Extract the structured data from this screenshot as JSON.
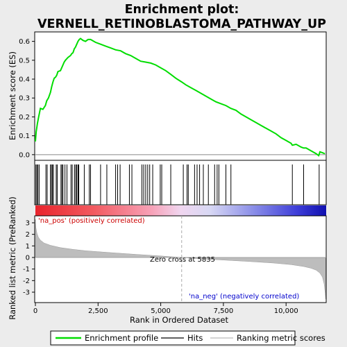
{
  "chart_data": {
    "type": "line",
    "title_line1": "Enrichment plot:",
    "title_line2": "VERNELL_RETINOBLASTOMA_PATHWAY_UP",
    "top_panel": {
      "ylabel": "Enrichment score (ES)",
      "ylim": [
        -0.03,
        0.65
      ],
      "yticks": [
        "0.0",
        "0.1",
        "0.2",
        "0.3",
        "0.4",
        "0.5",
        "0.6"
      ],
      "xlim": [
        0,
        11600
      ],
      "series_name": "Enrichment profile",
      "color": "#00dd00",
      "x": [
        0,
        30,
        80,
        130,
        200,
        300,
        400,
        450,
        520,
        600,
        650,
        700,
        750,
        800,
        850,
        900,
        1000,
        1100,
        1150,
        1200,
        1300,
        1400,
        1450,
        1500,
        1550,
        1600,
        1650,
        1700,
        1750,
        1800,
        1900,
        2000,
        2100,
        2200,
        2400,
        2600,
        2800,
        3000,
        3200,
        3400,
        3600,
        3800,
        4000,
        4200,
        4400,
        4600,
        4800,
        5000,
        5200,
        5400,
        5600,
        5835,
        6000,
        6200,
        6400,
        6600,
        6800,
        7000,
        7200,
        7400,
        7600,
        7800,
        8000,
        8200,
        8400,
        8600,
        8800,
        9000,
        9200,
        9400,
        9600,
        9800,
        10000,
        10200,
        10250,
        10400,
        10600,
        10700,
        10800,
        11000,
        11200,
        11300,
        11350,
        11450,
        11550
      ],
      "y": [
        0.07,
        0.12,
        0.165,
        0.2,
        0.245,
        0.24,
        0.26,
        0.285,
        0.3,
        0.33,
        0.36,
        0.385,
        0.405,
        0.41,
        0.42,
        0.44,
        0.445,
        0.475,
        0.49,
        0.5,
        0.515,
        0.525,
        0.535,
        0.54,
        0.56,
        0.57,
        0.585,
        0.6,
        0.61,
        0.615,
        0.605,
        0.6,
        0.61,
        0.61,
        0.595,
        0.585,
        0.575,
        0.565,
        0.555,
        0.55,
        0.535,
        0.525,
        0.51,
        0.495,
        0.49,
        0.485,
        0.475,
        0.46,
        0.445,
        0.425,
        0.405,
        0.385,
        0.37,
        0.355,
        0.34,
        0.325,
        0.31,
        0.295,
        0.28,
        0.27,
        0.26,
        0.245,
        0.235,
        0.215,
        0.2,
        0.185,
        0.17,
        0.155,
        0.14,
        0.125,
        0.11,
        0.09,
        0.075,
        0.06,
        0.05,
        0.055,
        0.04,
        0.035,
        0.035,
        0.02,
        0.005,
        -0.005,
        0.015,
        0.01,
        0.005
      ]
    },
    "hits": [
      20,
      60,
      100,
      150,
      420,
      470,
      600,
      640,
      680,
      720,
      830,
      870,
      1020,
      1060,
      1100,
      1180,
      1260,
      1420,
      1470,
      1560,
      1610,
      1650,
      1700,
      1730,
      1950,
      2150,
      2200,
      2600,
      2850,
      3200,
      3280,
      3380,
      3750,
      3850,
      4250,
      4320,
      4400,
      4480,
      4560,
      4680,
      4980,
      5040,
      5400,
      5900,
      6050,
      6100,
      6350,
      6450,
      6550,
      6700,
      6900,
      7150,
      7250,
      7320,
      7600,
      7800,
      10250,
      10700,
      11320
    ],
    "bottom_panel": {
      "ylabel": "Ranked list metric (PreRanked)",
      "xlabel": "Rank in Ordered Dataset",
      "ylim": [
        -3.9,
        3.6
      ],
      "yticks": [
        "-3",
        "-2",
        "-1",
        "0",
        "1",
        "2",
        "3"
      ],
      "xticks": [
        0,
        2500,
        5000,
        7500,
        10000
      ],
      "xtick_labels": [
        "0",
        "2,500",
        "5,000",
        "7,500",
        "10,000"
      ],
      "curve_x": [
        0,
        20,
        60,
        120,
        200,
        350,
        600,
        1000,
        1500,
        2000,
        3000,
        4000,
        5000,
        5835,
        6500,
        7500,
        8500,
        9500,
        10200,
        10700,
        11000,
        11200,
        11350,
        11450,
        11520,
        11560,
        11580
      ],
      "curve_y": [
        3.3,
        2.6,
        2.1,
        1.75,
        1.5,
        1.25,
        1.05,
        0.85,
        0.7,
        0.58,
        0.42,
        0.27,
        0.13,
        0.0,
        -0.1,
        -0.22,
        -0.34,
        -0.48,
        -0.62,
        -0.78,
        -0.93,
        -1.1,
        -1.35,
        -1.7,
        -2.3,
        -3.1,
        -3.6
      ],
      "zero_cross_label": "Zero cross at 5835",
      "zero_cross": 5835,
      "pos_label": "'na_pos' (positively correlated)",
      "neg_label": "'na_neg' (negatively correlated)"
    },
    "legend": [
      "Enrichment profile",
      "Hits",
      "Ranking metric scores"
    ]
  }
}
